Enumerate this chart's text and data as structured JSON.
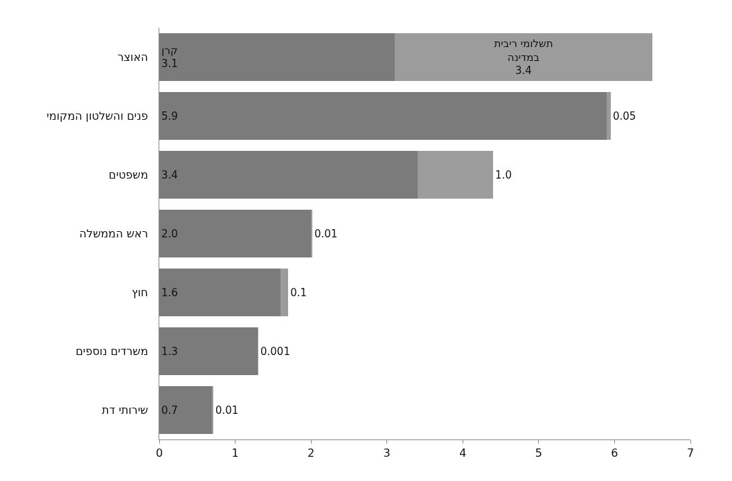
{
  "chart_data": {
    "type": "bar",
    "orientation": "horizontal",
    "stacked": true,
    "categories": [
      "האוצר",
      "פנים והשלטון המקומי",
      "משפטים",
      "ראש הממשלה",
      "חוץ",
      "משרדים נוספים",
      "שירותי דת"
    ],
    "series": [
      {
        "color": "#7b7b7b",
        "values": [
          3.1,
          5.9,
          3.4,
          2.0,
          1.6,
          1.3,
          0.7
        ],
        "value_labels": [
          "קרן\n3.1",
          "5.9",
          "3.4",
          "2.0",
          "1.6",
          "1.3",
          "0.7"
        ]
      },
      {
        "color": "#9c9c9c",
        "values": [
          3.4,
          0.05,
          1.0,
          0.01,
          0.1,
          0.001,
          0.01
        ],
        "value_labels": [
          "תשלומי ריבית\nבמדינה\n3.4",
          "0.05",
          "1.0",
          "0.01",
          "0.1",
          "0.001",
          "0.01"
        ]
      }
    ],
    "xlim": [
      0,
      7
    ],
    "xticks": [
      0,
      1,
      2,
      3,
      4,
      5,
      6,
      7
    ]
  }
}
